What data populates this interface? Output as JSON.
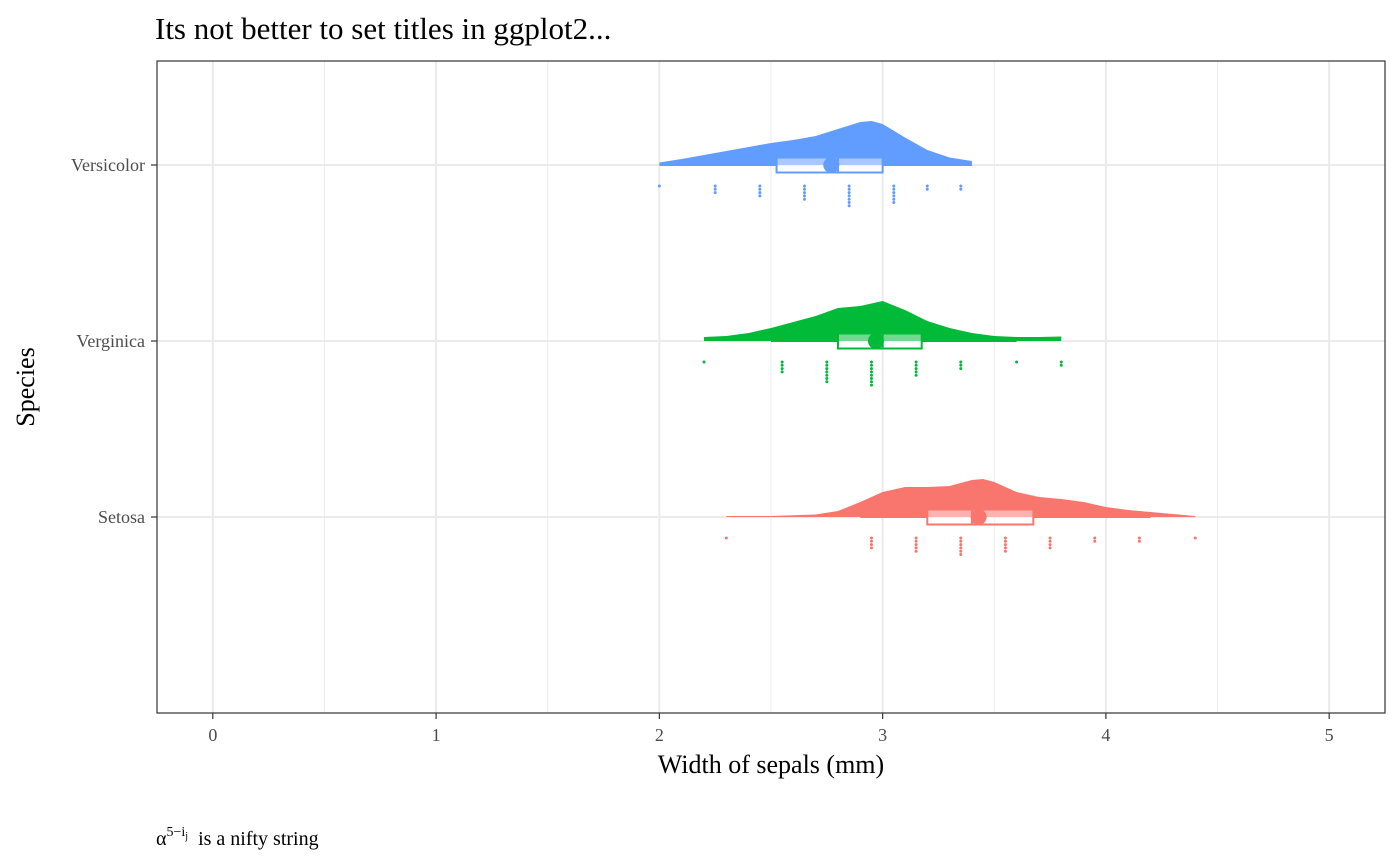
{
  "chart_data": {
    "type": "raincloud",
    "title": "Its not better to set titles in ggplot2...",
    "xlabel": "Width of sepals (mm)",
    "ylabel": "Species",
    "caption": {
      "base": "α",
      "superscript": "5−i",
      "sub": "j",
      "rest": "is  a  nifty  string"
    },
    "xlim": [
      -0.25,
      5.25
    ],
    "xticks": [
      "0",
      "1",
      "2",
      "3",
      "4",
      "5"
    ],
    "categories": [
      "Versicolor",
      "Verginica",
      "Setosa"
    ],
    "grid": true,
    "series": [
      {
        "name": "Versicolor",
        "color": "#619CFF",
        "box": {
          "min": 2.0,
          "q1": 2.525,
          "median": 2.8,
          "q3": 3.0,
          "max": 3.4,
          "mean": 2.77
        },
        "density": [
          [
            2.0,
            0.05
          ],
          [
            2.1,
            0.12
          ],
          [
            2.2,
            0.2
          ],
          [
            2.3,
            0.28
          ],
          [
            2.4,
            0.36
          ],
          [
            2.5,
            0.44
          ],
          [
            2.6,
            0.5
          ],
          [
            2.7,
            0.58
          ],
          [
            2.8,
            0.72
          ],
          [
            2.9,
            0.86
          ],
          [
            2.95,
            0.88
          ],
          [
            3.0,
            0.82
          ],
          [
            3.1,
            0.55
          ],
          [
            3.2,
            0.3
          ],
          [
            3.3,
            0.15
          ],
          [
            3.4,
            0.08
          ]
        ],
        "points": [
          [
            2.0,
            1
          ],
          [
            2.25,
            3
          ],
          [
            2.45,
            4
          ],
          [
            2.65,
            5
          ],
          [
            2.85,
            7
          ],
          [
            3.05,
            6
          ],
          [
            3.2,
            2
          ],
          [
            3.35,
            2
          ]
        ]
      },
      {
        "name": "Verginica",
        "color": "#00BA38",
        "box": {
          "min": 2.5,
          "q1": 2.8,
          "median": 3.0,
          "q3": 3.175,
          "max": 3.6,
          "mean": 2.97
        },
        "density": [
          [
            2.2,
            0.08
          ],
          [
            2.3,
            0.1
          ],
          [
            2.4,
            0.16
          ],
          [
            2.5,
            0.26
          ],
          [
            2.6,
            0.38
          ],
          [
            2.7,
            0.5
          ],
          [
            2.8,
            0.66
          ],
          [
            2.9,
            0.7
          ],
          [
            3.0,
            0.8
          ],
          [
            3.1,
            0.62
          ],
          [
            3.2,
            0.4
          ],
          [
            3.3,
            0.26
          ],
          [
            3.4,
            0.16
          ],
          [
            3.5,
            0.1
          ],
          [
            3.6,
            0.08
          ],
          [
            3.7,
            0.08
          ],
          [
            3.8,
            0.09
          ]
        ],
        "points": [
          [
            2.2,
            1
          ],
          [
            2.55,
            4
          ],
          [
            2.75,
            7
          ],
          [
            2.95,
            8
          ],
          [
            3.15,
            5
          ],
          [
            3.35,
            3
          ],
          [
            3.6,
            1
          ],
          [
            3.8,
            2
          ]
        ]
      },
      {
        "name": "Setosa",
        "color": "#F8766D",
        "box": {
          "min": 2.9,
          "q1": 3.2,
          "median": 3.4,
          "q3": 3.675,
          "max": 4.2,
          "mean": 3.43
        },
        "density": [
          [
            2.3,
            0.02
          ],
          [
            2.5,
            0.02
          ],
          [
            2.7,
            0.05
          ],
          [
            2.8,
            0.12
          ],
          [
            2.9,
            0.3
          ],
          [
            3.0,
            0.5
          ],
          [
            3.1,
            0.6
          ],
          [
            3.2,
            0.6
          ],
          [
            3.3,
            0.62
          ],
          [
            3.4,
            0.74
          ],
          [
            3.45,
            0.76
          ],
          [
            3.5,
            0.7
          ],
          [
            3.6,
            0.5
          ],
          [
            3.7,
            0.4
          ],
          [
            3.8,
            0.36
          ],
          [
            3.9,
            0.3
          ],
          [
            4.0,
            0.2
          ],
          [
            4.1,
            0.14
          ],
          [
            4.2,
            0.1
          ],
          [
            4.3,
            0.06
          ],
          [
            4.4,
            0.02
          ]
        ],
        "points": [
          [
            2.3,
            1
          ],
          [
            2.95,
            4
          ],
          [
            3.15,
            5
          ],
          [
            3.35,
            6
          ],
          [
            3.55,
            5
          ],
          [
            3.75,
            4
          ],
          [
            3.95,
            2
          ],
          [
            4.15,
            2
          ],
          [
            4.4,
            1
          ]
        ]
      }
    ]
  }
}
